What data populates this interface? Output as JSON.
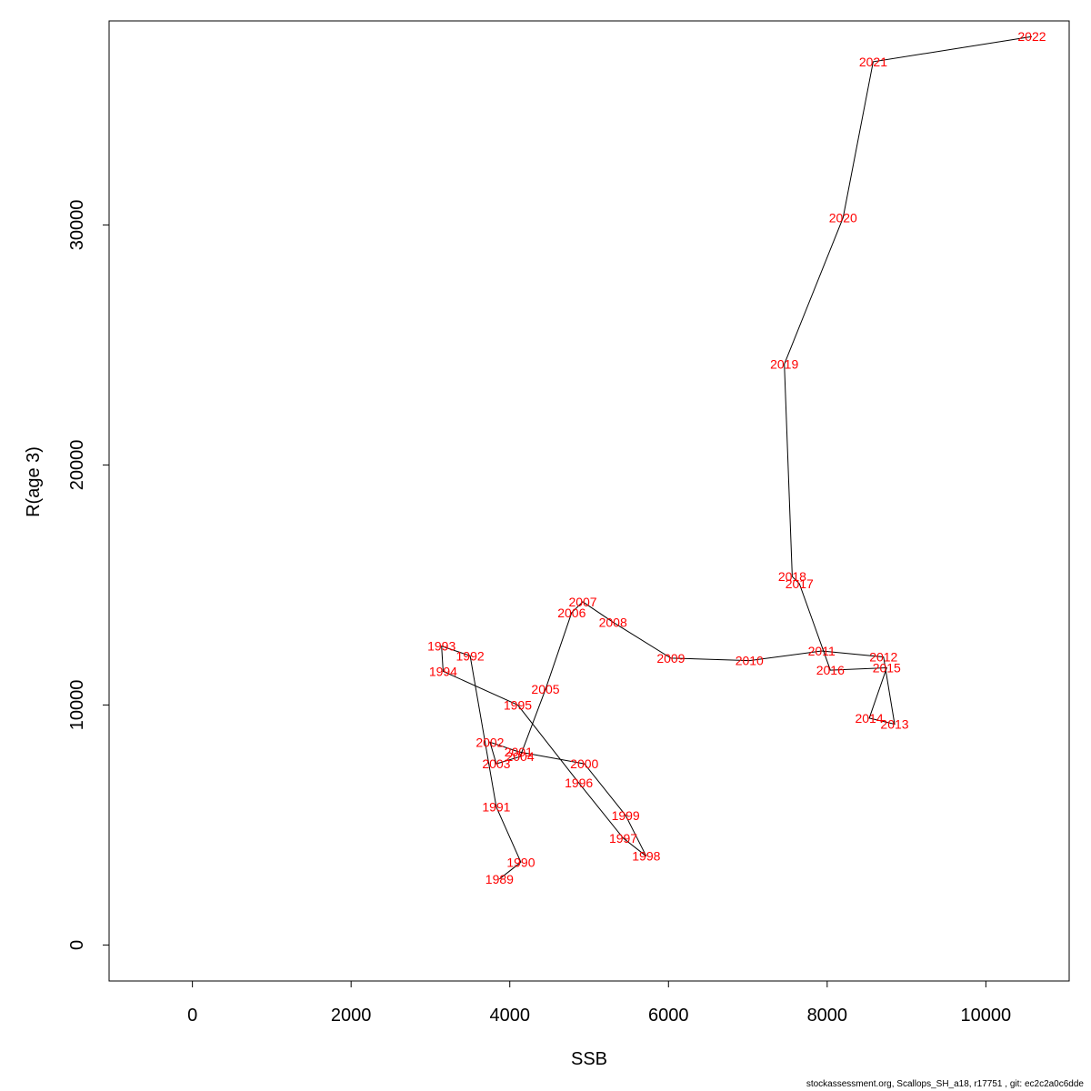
{
  "chart_data": {
    "type": "scatter",
    "connected": true,
    "xlabel": "SSB",
    "ylabel": "R(age 3)",
    "xlim": [
      -1050,
      11050
    ],
    "ylim": [
      -1500,
      38500
    ],
    "xticks": [
      0,
      2000,
      4000,
      6000,
      8000,
      10000
    ],
    "yticks": [
      0,
      10000,
      20000,
      30000
    ],
    "grid": false,
    "point_label_color": "#ff0000",
    "line_color": "#000000",
    "points": [
      {
        "label": "1989",
        "x": 3870,
        "y": 2750
      },
      {
        "label": "1990",
        "x": 4140,
        "y": 3450
      },
      {
        "label": "1991",
        "x": 3830,
        "y": 5750
      },
      {
        "label": "1992",
        "x": 3500,
        "y": 12050
      },
      {
        "label": "1993",
        "x": 3140,
        "y": 12450
      },
      {
        "label": "1994",
        "x": 3160,
        "y": 11400
      },
      {
        "label": "1995",
        "x": 4100,
        "y": 10000
      },
      {
        "label": "1996",
        "x": 4870,
        "y": 6750
      },
      {
        "label": "1997",
        "x": 5430,
        "y": 4450
      },
      {
        "label": "1998",
        "x": 5720,
        "y": 3700
      },
      {
        "label": "1999",
        "x": 5460,
        "y": 5400
      },
      {
        "label": "2000",
        "x": 4940,
        "y": 7550
      },
      {
        "label": "2001",
        "x": 4110,
        "y": 8050
      },
      {
        "label": "2002",
        "x": 3750,
        "y": 8450
      },
      {
        "label": "2003",
        "x": 3830,
        "y": 7550
      },
      {
        "label": "2004",
        "x": 4130,
        "y": 7850
      },
      {
        "label": "2005",
        "x": 4450,
        "y": 10650
      },
      {
        "label": "2006",
        "x": 4780,
        "y": 13850
      },
      {
        "label": "2007",
        "x": 4920,
        "y": 14300
      },
      {
        "label": "2008",
        "x": 5300,
        "y": 13450
      },
      {
        "label": "2009",
        "x": 6030,
        "y": 11950
      },
      {
        "label": "2010",
        "x": 7020,
        "y": 11850
      },
      {
        "label": "2011",
        "x": 7930,
        "y": 12250
      },
      {
        "label": "2012",
        "x": 8710,
        "y": 12000
      },
      {
        "label": "2013",
        "x": 8850,
        "y": 9200
      },
      {
        "label": "2014",
        "x": 8530,
        "y": 9450
      },
      {
        "label": "2015",
        "x": 8750,
        "y": 11550
      },
      {
        "label": "2016",
        "x": 8040,
        "y": 11450
      },
      {
        "label": "2017",
        "x": 7650,
        "y": 15050
      },
      {
        "label": "2018",
        "x": 7560,
        "y": 15350
      },
      {
        "label": "2019",
        "x": 7460,
        "y": 24200
      },
      {
        "label": "2020",
        "x": 8200,
        "y": 30300
      },
      {
        "label": "2021",
        "x": 8580,
        "y": 36800
      },
      {
        "label": "2022",
        "x": 10580,
        "y": 37850
      }
    ]
  },
  "footer": "stockassessment.org, Scallops_SH_a18, r17751 , git: ec2c2a0c6dde"
}
